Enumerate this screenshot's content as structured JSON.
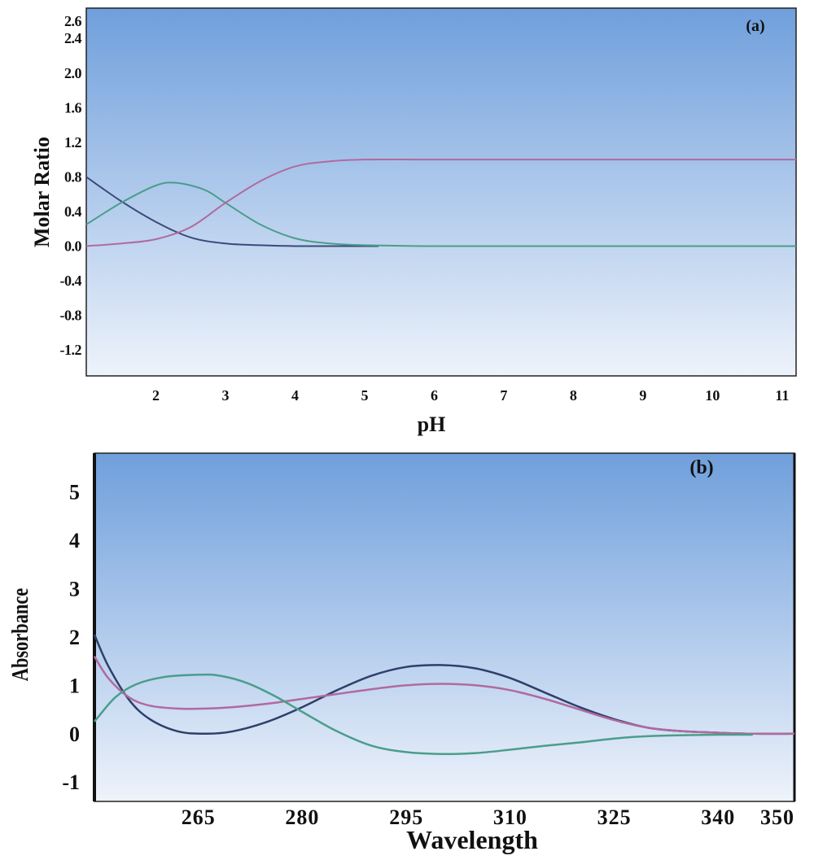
{
  "chart_data": [
    {
      "type": "line",
      "panel_label": "(a)",
      "xlabel": "pH",
      "ylabel": "Molar Ratio",
      "xlim": [
        1,
        11.2
      ],
      "ylim": [
        -1.5,
        2.75
      ],
      "x_ticks": [
        "2",
        "3",
        "4",
        "5",
        "6",
        "7",
        "8",
        "9",
        "10",
        "11"
      ],
      "y_ticks": [
        "2.6",
        "2.4",
        "2.0",
        "1.6",
        "1.2",
        "0.8",
        "0.4",
        "0.0",
        "-0.4",
        "-0.8",
        "-1.2"
      ],
      "grid": false,
      "background": [
        "#6f9fdc",
        "#eef3fb"
      ],
      "series": [
        {
          "color": "#3a4a7a",
          "x": [
            1.0,
            1.5,
            2.0,
            2.5,
            3.0,
            3.5,
            4.0,
            4.5,
            5.2
          ],
          "y": [
            0.8,
            0.52,
            0.28,
            0.1,
            0.03,
            0.01,
            0.0,
            0.0,
            0.0
          ]
        },
        {
          "color": "#4a9e8a",
          "x": [
            1.0,
            1.5,
            2.0,
            2.3,
            2.7,
            3.0,
            3.5,
            4.0,
            4.5,
            5.0,
            6.0,
            8.0,
            11.2
          ],
          "y": [
            0.25,
            0.5,
            0.7,
            0.73,
            0.65,
            0.5,
            0.25,
            0.09,
            0.03,
            0.01,
            0.0,
            0.0,
            0.0
          ]
        },
        {
          "color": "#b06aa0",
          "x": [
            1.0,
            1.5,
            2.0,
            2.5,
            3.0,
            3.5,
            4.0,
            4.5,
            5.0,
            6.0,
            8.0,
            11.2
          ],
          "y": [
            0.0,
            0.03,
            0.08,
            0.22,
            0.5,
            0.75,
            0.92,
            0.98,
            1.0,
            1.0,
            1.0,
            1.0
          ]
        }
      ]
    },
    {
      "type": "line",
      "panel_label": "(b)",
      "xlabel": "Wavelength",
      "ylabel": "Absorbance",
      "xlim": [
        250,
        351
      ],
      "ylim": [
        -1.4,
        5.8
      ],
      "x_ticks": [
        {
          "value": 265,
          "label": "265"
        },
        {
          "value": 280,
          "label": "280"
        },
        {
          "value": 295,
          "label": "295"
        },
        {
          "value": 310,
          "label": "310"
        },
        {
          "value": 325,
          "label": "325"
        },
        {
          "value": 340,
          "label": "340"
        },
        {
          "value": 350,
          "label": "350"
        }
      ],
      "y_ticks": [
        {
          "value": 5,
          "label": "5"
        },
        {
          "value": 4,
          "label": "4"
        },
        {
          "value": 3,
          "label": "3"
        },
        {
          "value": 2,
          "label": "2"
        },
        {
          "value": 1,
          "label": "1"
        },
        {
          "value": 0,
          "label": "0"
        },
        {
          "value": -1,
          "label": "-1"
        }
      ],
      "grid": false,
      "background": [
        "#6f9fdc",
        "#eef3fb"
      ],
      "series": [
        {
          "color": "#2f3f6a",
          "x": [
            250,
            252,
            255,
            258,
            262,
            266,
            270,
            275,
            280,
            285,
            290,
            295,
            300,
            305,
            310,
            315,
            320,
            325,
            330,
            335,
            340,
            345,
            351
          ],
          "y": [
            2.05,
            1.4,
            0.7,
            0.3,
            0.05,
            0.0,
            0.05,
            0.25,
            0.55,
            0.9,
            1.2,
            1.38,
            1.42,
            1.35,
            1.15,
            0.85,
            0.55,
            0.3,
            0.12,
            0.05,
            0.02,
            0.0,
            0.0
          ]
        },
        {
          "color": "#b06aa0",
          "x": [
            250,
            252,
            255,
            258,
            262,
            266,
            270,
            275,
            280,
            285,
            290,
            295,
            300,
            305,
            310,
            315,
            320,
            325,
            330,
            335,
            340,
            345,
            351
          ],
          "y": [
            1.6,
            1.15,
            0.75,
            0.58,
            0.52,
            0.52,
            0.55,
            0.62,
            0.72,
            0.82,
            0.92,
            1.0,
            1.03,
            1.0,
            0.9,
            0.72,
            0.5,
            0.28,
            0.12,
            0.05,
            0.02,
            0.0,
            0.0
          ]
        },
        {
          "color": "#4a9e8a",
          "x": [
            250,
            253,
            256,
            260,
            265,
            268,
            272,
            276,
            280,
            285,
            290,
            295,
            300,
            305,
            310,
            315,
            320,
            325,
            330,
            335,
            340,
            345
          ],
          "y": [
            0.25,
            0.75,
            1.02,
            1.17,
            1.22,
            1.2,
            1.05,
            0.78,
            0.45,
            0.05,
            -0.25,
            -0.38,
            -0.42,
            -0.4,
            -0.33,
            -0.25,
            -0.18,
            -0.1,
            -0.05,
            -0.03,
            -0.02,
            -0.02
          ]
        }
      ]
    }
  ]
}
